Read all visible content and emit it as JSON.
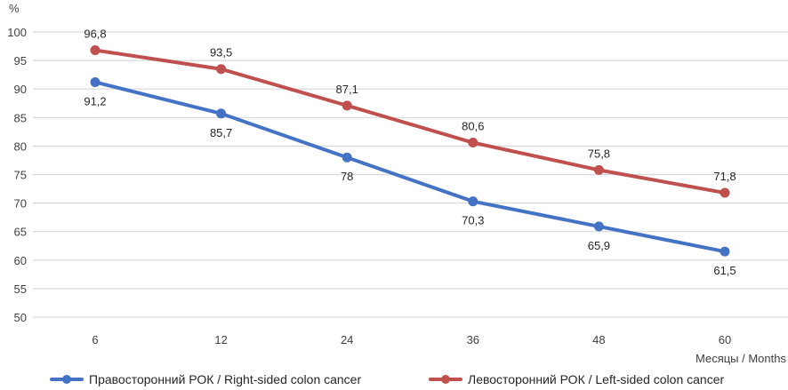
{
  "chart_data": {
    "type": "line",
    "title": "",
    "ylabel": "%",
    "xlabel": "Месяцы / Months",
    "categories": [
      "6",
      "12",
      "24",
      "36",
      "48",
      "60"
    ],
    "ylim": [
      50,
      100
    ],
    "yticks": [
      50,
      55,
      60,
      65,
      70,
      75,
      80,
      85,
      90,
      95,
      100
    ],
    "grid": true,
    "legend_position": "bottom",
    "series": [
      {
        "name": "Правосторонний РОК / Right-sided colon cancer",
        "color": "#4472C4",
        "values": [
          91.2,
          85.7,
          78,
          70.3,
          65.9,
          61.5
        ],
        "labels": [
          "91,2",
          "85,7",
          "78",
          "70,3",
          "65,9",
          "61,5"
        ],
        "label_position": "below"
      },
      {
        "name": "Левосторонний РОК / Left-sided colon cancer",
        "color": "#C0504D",
        "values": [
          96.8,
          93.5,
          87.1,
          80.6,
          75.8,
          71.8
        ],
        "labels": [
          "96,8",
          "93,5",
          "87,1",
          "80,6",
          "75,8",
          "71,8"
        ],
        "label_position": "above"
      }
    ]
  }
}
